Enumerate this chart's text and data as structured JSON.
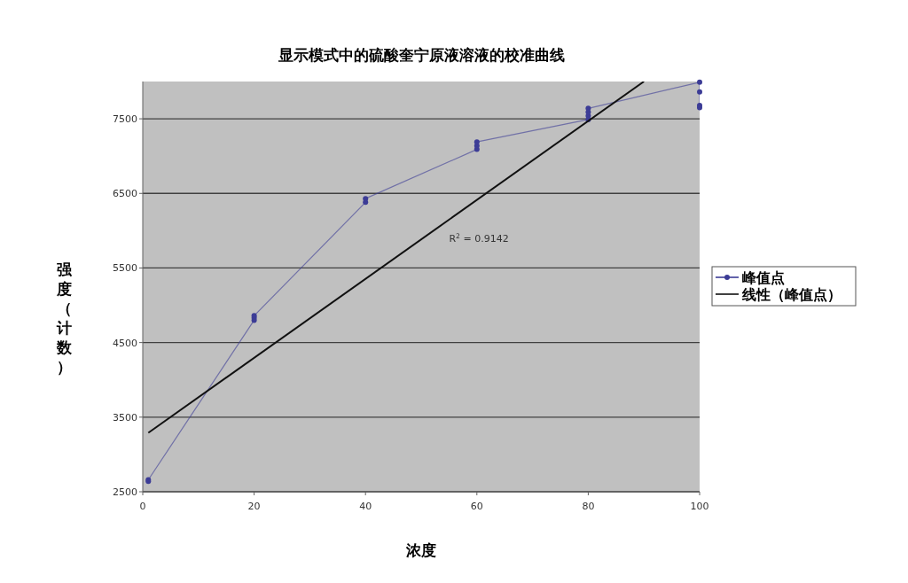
{
  "chart_data": {
    "type": "line",
    "title": "显示模式中的硫酸奎宁原液溶液的校准曲线",
    "xlabel": "浓度",
    "ylabel": "强度（计数）",
    "xlim": [
      0,
      100
    ],
    "xticks": [
      0,
      20,
      40,
      60,
      80,
      100
    ],
    "ylim": [
      2500,
      8000
    ],
    "yticks": [
      2500,
      3500,
      4500,
      5500,
      6500,
      7500
    ],
    "grid": "y",
    "legend": "right",
    "marker": "circle",
    "line_style": "solid",
    "series": [
      {
        "name": "峰值点",
        "color": "#3c3c96",
        "type": "line",
        "x": [
          1,
          1,
          20,
          20,
          20,
          40,
          40,
          60,
          60,
          60,
          80,
          80,
          80,
          80,
          100,
          100,
          100,
          100
        ],
        "values": [
          2640,
          2660,
          4800,
          4830,
          4860,
          6380,
          6430,
          7090,
          7140,
          7190,
          7490,
          7540,
          7590,
          7640,
          7990,
          7860,
          7680,
          7650
        ]
      },
      {
        "name": "线性（峰值点）",
        "color": "#111111",
        "type": "line",
        "marker": "none",
        "x": [
          1,
          90
        ],
        "values": [
          3290,
          8000
        ]
      }
    ],
    "annotations": [
      "R$^{2}$ = 0.9142"
    ]
  }
}
